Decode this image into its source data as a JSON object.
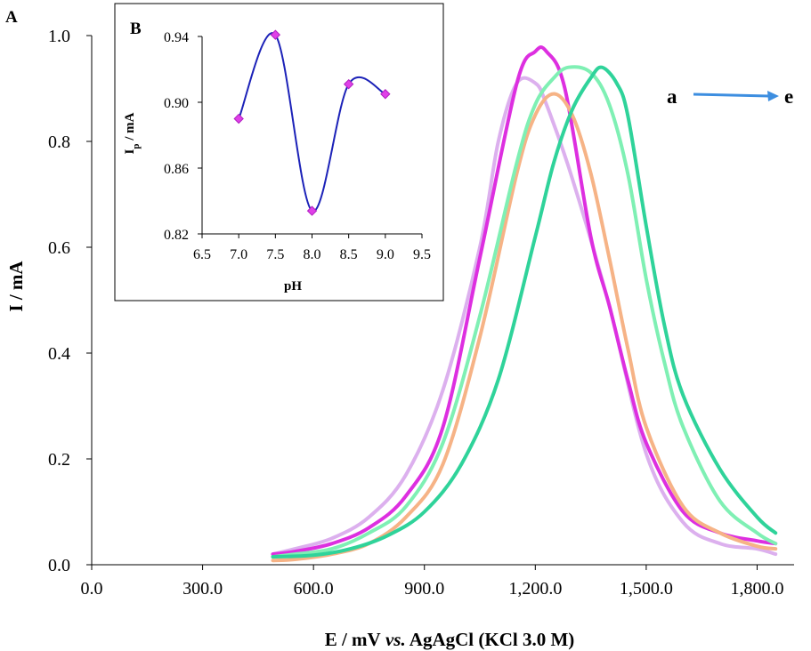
{
  "chart_data": [
    {
      "panel": "A",
      "type": "line",
      "xlabel_main": "E / mV",
      "xlabel_italic": " vs.",
      "xlabel_tail": " AgAgCl (KCl 3.0 M)",
      "ylabel": "I / mA",
      "xlim": [
        0,
        1900
      ],
      "ylim": [
        0,
        1.0
      ],
      "xticks": [
        0,
        300,
        600,
        900,
        1200,
        1500,
        1800
      ],
      "xtick_labels": [
        "0.0",
        "300.0",
        "600.0",
        "900.0",
        "1,200.0",
        "1,500.0",
        "1,800.0"
      ],
      "yticks": [
        0,
        0.2,
        0.4,
        0.6,
        0.8,
        1.0
      ],
      "ytick_labels": [
        "0.0",
        "0.2",
        "0.4",
        "0.6",
        "0.8",
        "1.0"
      ],
      "grid": false,
      "series_range_label_start": "a",
      "series_range_label_end": "e",
      "arrow_color": "#3d8ee0",
      "series": [
        {
          "color": "#dcb0ee",
          "x": [
            490,
            550,
            650,
            750,
            850,
            950,
            1050,
            1100,
            1150,
            1200,
            1230,
            1300,
            1400,
            1500,
            1600,
            1700,
            1800,
            1850
          ],
          "values": [
            0.02,
            0.03,
            0.05,
            0.09,
            0.17,
            0.33,
            0.6,
            0.8,
            0.91,
            0.91,
            0.87,
            0.73,
            0.49,
            0.21,
            0.08,
            0.04,
            0.03,
            0.02
          ]
        },
        {
          "color": "#dd2fe0",
          "x": [
            490,
            550,
            650,
            750,
            850,
            950,
            1050,
            1150,
            1200,
            1230,
            1280,
            1350,
            1400,
            1450,
            1500,
            1600,
            1700,
            1800,
            1850
          ],
          "values": [
            0.02,
            0.025,
            0.04,
            0.07,
            0.13,
            0.26,
            0.58,
            0.91,
            0.97,
            0.97,
            0.9,
            0.62,
            0.49,
            0.35,
            0.23,
            0.1,
            0.06,
            0.045,
            0.04
          ]
        },
        {
          "color": "#f6b386",
          "x": [
            490,
            550,
            650,
            750,
            850,
            950,
            1050,
            1150,
            1200,
            1250,
            1300,
            1350,
            1400,
            1450,
            1500,
            1600,
            1700,
            1800,
            1850
          ],
          "values": [
            0.008,
            0.01,
            0.02,
            0.04,
            0.09,
            0.19,
            0.43,
            0.74,
            0.85,
            0.89,
            0.85,
            0.74,
            0.58,
            0.41,
            0.26,
            0.11,
            0.06,
            0.035,
            0.03
          ]
        },
        {
          "color": "#7ff0b4",
          "x": [
            490,
            550,
            650,
            750,
            850,
            950,
            1050,
            1150,
            1200,
            1250,
            1290,
            1350,
            1400,
            1450,
            1500,
            1550,
            1600,
            1700,
            1800,
            1850
          ],
          "values": [
            0.015,
            0.02,
            0.03,
            0.06,
            0.11,
            0.23,
            0.47,
            0.76,
            0.87,
            0.92,
            0.94,
            0.93,
            0.87,
            0.74,
            0.54,
            0.38,
            0.26,
            0.12,
            0.06,
            0.04
          ]
        },
        {
          "color": "#2fd39a",
          "x": [
            490,
            600,
            700,
            800,
            900,
            1000,
            1100,
            1200,
            1250,
            1300,
            1350,
            1380,
            1420,
            1450,
            1500,
            1550,
            1600,
            1700,
            1800,
            1850
          ],
          "values": [
            0.015,
            0.018,
            0.03,
            0.055,
            0.1,
            0.19,
            0.35,
            0.62,
            0.76,
            0.86,
            0.92,
            0.94,
            0.91,
            0.85,
            0.64,
            0.45,
            0.32,
            0.18,
            0.09,
            0.06
          ]
        }
      ]
    },
    {
      "panel": "B",
      "type": "line",
      "xlabel": "pH",
      "ylabel_main": "I",
      "ylabel_sub": "p",
      "ylabel_tail": " / mA",
      "xlim": [
        6.5,
        9.5
      ],
      "ylim": [
        0.82,
        0.94
      ],
      "xticks": [
        6.5,
        7.0,
        7.5,
        8.0,
        8.5,
        9.0,
        9.5
      ],
      "xtick_labels": [
        "6.5",
        "7.0",
        "7.5",
        "8.0",
        "8.5",
        "9.0",
        "9.5"
      ],
      "yticks": [
        0.82,
        0.86,
        0.9,
        0.94
      ],
      "ytick_labels": [
        "0.82",
        "0.86",
        "0.90",
        "0.94"
      ],
      "grid": false,
      "line_color": "#1c22b8",
      "marker_color": "#e040e8",
      "x": [
        7.0,
        7.5,
        8.0,
        8.5,
        9.0
      ],
      "values": [
        0.89,
        0.941,
        0.834,
        0.911,
        0.905
      ]
    }
  ]
}
